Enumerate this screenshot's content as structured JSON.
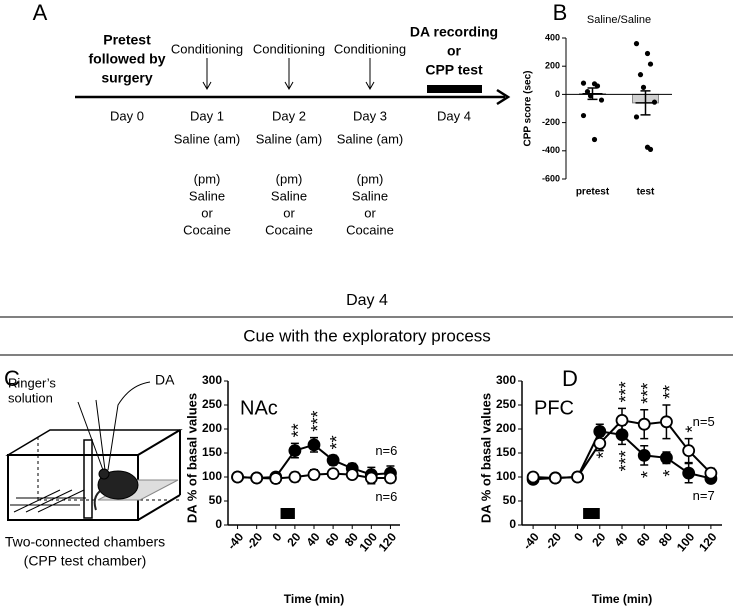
{
  "panel_labels": [
    "A",
    "B",
    "C",
    "D"
  ],
  "timeline": {
    "events": [
      {
        "day": "Day 0",
        "top": [
          "Pretest",
          "followed by",
          "surgery"
        ]
      },
      {
        "day": "Day 1",
        "top": [
          "Conditioning"
        ],
        "schedule": [
          "Saline (am)",
          "(pm)",
          "Saline",
          "or",
          "Cocaine"
        ]
      },
      {
        "day": "Day 2",
        "top": [
          "Conditioning"
        ],
        "schedule": [
          "Saline (am)",
          "(pm)",
          "Saline",
          "or",
          "Cocaine"
        ]
      },
      {
        "day": "Day 3",
        "top": [
          "Conditioning"
        ],
        "schedule": [
          "Saline (am)",
          "(pm)",
          "Saline",
          "or",
          "Cocaine"
        ]
      },
      {
        "day": "Day 4",
        "top": [
          "DA recording",
          "or",
          "CPP test"
        ]
      }
    ]
  },
  "day4": {
    "title": "Day 4",
    "heading": "Cue with the exploratory process"
  },
  "schematic": {
    "inlet": [
      "Ringer’s",
      "solution"
    ],
    "outlet": "DA",
    "caption": [
      "Two-connected chambers",
      "(CPP test chamber)"
    ]
  },
  "chart_data": [
    {
      "type": "bar",
      "title": "Saline/Saline",
      "ylabel": "CPP score (sec)",
      "categories": [
        "pretest",
        "test"
      ],
      "values": [
        5,
        -60
      ],
      "errors": [
        40,
        85
      ],
      "colors": [
        "#ffffff",
        "#d0d0d0"
      ],
      "points": [
        [
          80,
          75,
          60,
          20,
          -10,
          -40,
          -150,
          -320
        ],
        [
          360,
          290,
          215,
          140,
          50,
          -55,
          -160,
          -375,
          -390
        ]
      ],
      "ylim": [
        -600,
        400
      ],
      "yticks": [
        -600,
        -400,
        -200,
        0,
        200,
        400
      ]
    },
    {
      "type": "line",
      "label": "NAc",
      "xlabel": "Time (min)",
      "ylabel": "DA % of basal values",
      "x": [
        -40,
        -20,
        0,
        20,
        40,
        60,
        80,
        100,
        120
      ],
      "series": [
        {
          "name": "n=6",
          "color": "#000000",
          "marker": "filled",
          "values": [
            100,
            98,
            100,
            155,
            167,
            135,
            118,
            105,
            108
          ],
          "errors": [
            5,
            5,
            5,
            15,
            15,
            10,
            10,
            15,
            15
          ],
          "stars": [
            null,
            null,
            null,
            "**",
            "***",
            "**",
            null,
            null,
            null
          ]
        },
        {
          "name": "n=6",
          "color": "#000000",
          "marker": "open",
          "values": [
            100,
            98,
            97,
            100,
            105,
            107,
            105,
            98,
            98
          ],
          "errors": [
            5,
            5,
            10,
            10,
            10,
            8,
            8,
            12,
            10
          ],
          "stars": [
            null,
            null,
            null,
            null,
            null,
            null,
            null,
            null,
            null
          ]
        }
      ],
      "xlim": [
        -50,
        130
      ],
      "xticks": [
        -40,
        -20,
        0,
        20,
        40,
        60,
        80,
        100,
        120
      ],
      "ylim": [
        0,
        300
      ],
      "yticks": [
        0,
        50,
        100,
        150,
        200,
        250,
        300
      ],
      "cue": [
        5,
        20
      ]
    },
    {
      "type": "line",
      "label": "PFC",
      "xlabel": "Time (min)",
      "ylabel": "DA % of basal values",
      "x": [
        -40,
        -20,
        0,
        20,
        40,
        60,
        80,
        100,
        120
      ],
      "series": [
        {
          "name": "n=7",
          "color": "#000000",
          "marker": "filled",
          "values": [
            95,
            98,
            100,
            195,
            188,
            145,
            140,
            108,
            97
          ],
          "errors": [
            5,
            5,
            5,
            15,
            20,
            20,
            12,
            20,
            8
          ],
          "stars": [
            null,
            null,
            null,
            "**",
            "***",
            "*",
            "*",
            null,
            null
          ]
        },
        {
          "name": "n=5",
          "color": "#000000",
          "marker": "open",
          "values": [
            100,
            98,
            100,
            170,
            218,
            210,
            215,
            155,
            108
          ],
          "errors": [
            5,
            5,
            5,
            15,
            25,
            30,
            35,
            25,
            10
          ],
          "stars": [
            null,
            null,
            null,
            null,
            "***",
            "***",
            "**",
            "*",
            null
          ]
        }
      ],
      "xlim": [
        -50,
        130
      ],
      "xticks": [
        -40,
        -20,
        0,
        20,
        40,
        60,
        80,
        100,
        120
      ],
      "ylim": [
        0,
        300
      ],
      "yticks": [
        0,
        50,
        100,
        150,
        200,
        250,
        300
      ],
      "cue": [
        5,
        20
      ]
    }
  ]
}
